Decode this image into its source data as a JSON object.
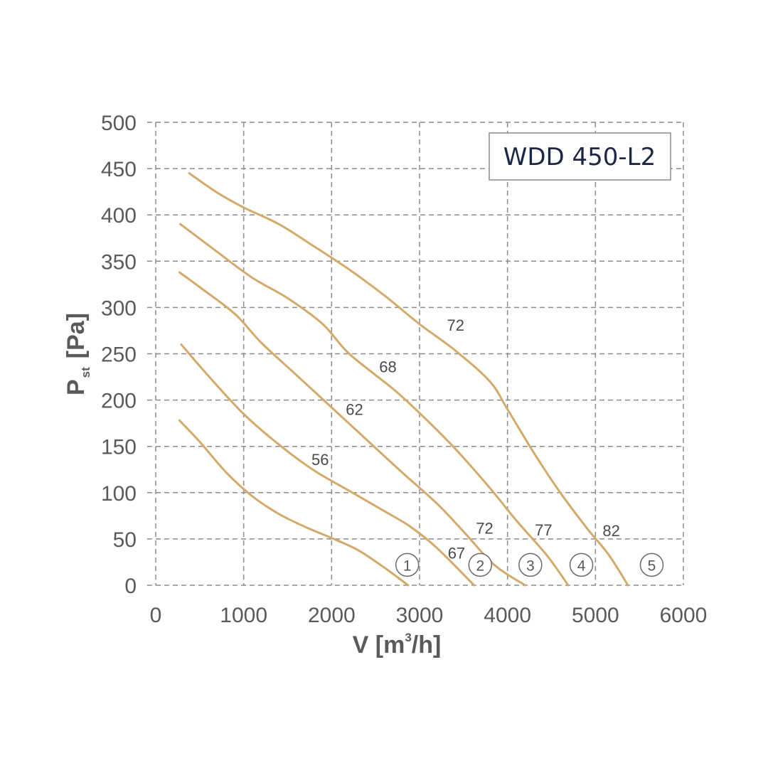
{
  "chart_data": {
    "type": "line",
    "title": "WDD 450-L2",
    "xlabel": {
      "main": "V [m",
      "sup": "3",
      "tail": "/h]"
    },
    "ylabel": {
      "main": "P",
      "sub": "st",
      "tail": "[Pa]"
    },
    "xlim": [
      0,
      6000
    ],
    "ylim": [
      0,
      500
    ],
    "xticks": [
      0,
      1000,
      2000,
      3000,
      4000,
      5000,
      6000
    ],
    "yticks": [
      0,
      50,
      100,
      150,
      200,
      250,
      300,
      350,
      400,
      450,
      500
    ],
    "grid": true,
    "line_color": "#d4aa6a",
    "series": [
      {
        "name": "1",
        "points": [
          [
            270,
            178
          ],
          [
            500,
            155
          ],
          [
            800,
            122
          ],
          [
            1100,
            96
          ],
          [
            1400,
            77
          ],
          [
            1700,
            63
          ],
          [
            2000,
            51
          ],
          [
            2300,
            38
          ],
          [
            2600,
            19
          ],
          [
            2870,
            0
          ]
        ]
      },
      {
        "name": "2",
        "points": [
          [
            290,
            260
          ],
          [
            600,
            226
          ],
          [
            1000,
            185
          ],
          [
            1400,
            152
          ],
          [
            1800,
            124
          ],
          [
            2200,
            102
          ],
          [
            2600,
            80
          ],
          [
            2900,
            63
          ],
          [
            3200,
            40
          ],
          [
            3620,
            0
          ]
        ]
      },
      {
        "name": "3",
        "points": [
          [
            270,
            338
          ],
          [
            500,
            322
          ],
          [
            900,
            293
          ],
          [
            1200,
            262
          ],
          [
            1600,
            227
          ],
          [
            2000,
            192
          ],
          [
            2400,
            157
          ],
          [
            2800,
            122
          ],
          [
            3200,
            88
          ],
          [
            3500,
            58
          ],
          [
            3850,
            22
          ],
          [
            4200,
            0
          ]
        ]
      },
      {
        "name": "4",
        "points": [
          [
            280,
            390
          ],
          [
            700,
            360
          ],
          [
            1100,
            332
          ],
          [
            1500,
            310
          ],
          [
            1900,
            282
          ],
          [
            2200,
            250
          ],
          [
            2700,
            212
          ],
          [
            3000,
            186
          ],
          [
            3400,
            148
          ],
          [
            3800,
            105
          ],
          [
            4100,
            70
          ],
          [
            4450,
            32
          ],
          [
            4690,
            0
          ]
        ]
      },
      {
        "name": "5",
        "points": [
          [
            380,
            445
          ],
          [
            700,
            424
          ],
          [
            1000,
            408
          ],
          [
            1400,
            390
          ],
          [
            1800,
            366
          ],
          [
            2200,
            341
          ],
          [
            2600,
            313
          ],
          [
            3000,
            282
          ],
          [
            3400,
            254
          ],
          [
            3800,
            220
          ],
          [
            4000,
            190
          ],
          [
            4300,
            143
          ],
          [
            4600,
            100
          ],
          [
            4900,
            62
          ],
          [
            5150,
            33
          ],
          [
            5370,
            0
          ]
        ]
      }
    ],
    "curve_labels": [
      {
        "text": "56",
        "x": 1870,
        "y": 136
      },
      {
        "text": "62",
        "x": 2260,
        "y": 190
      },
      {
        "text": "68",
        "x": 2640,
        "y": 236
      },
      {
        "text": "72",
        "x": 3410,
        "y": 281
      },
      {
        "text": "67",
        "x": 3420,
        "y": 35
      },
      {
        "text": "72",
        "x": 3740,
        "y": 62
      },
      {
        "text": "77",
        "x": 4410,
        "y": 60
      },
      {
        "text": "82",
        "x": 5180,
        "y": 59
      }
    ],
    "speed_markers": [
      {
        "text": "1",
        "x": 2860,
        "y": 22
      },
      {
        "text": "2",
        "x": 3690,
        "y": 22
      },
      {
        "text": "3",
        "x": 4260,
        "y": 22
      },
      {
        "text": "4",
        "x": 4840,
        "y": 22
      },
      {
        "text": "5",
        "x": 5640,
        "y": 22
      }
    ]
  }
}
